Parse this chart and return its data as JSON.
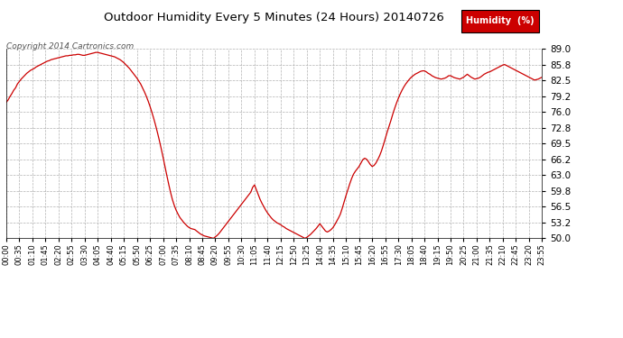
{
  "title": "Outdoor Humidity Every 5 Minutes (24 Hours) 20140726",
  "copyright_text": "Copyright 2014 Cartronics.com",
  "legend_label": "Humidity  (%)",
  "legend_bg": "#cc0000",
  "legend_text_color": "#ffffff",
  "line_color": "#cc0000",
  "bg_color": "#ffffff",
  "grid_color": "#aaaaaa",
  "title_color": "#000000",
  "copyright_color": "#555555",
  "ylim": [
    50.0,
    89.0
  ],
  "yticks": [
    50.0,
    53.2,
    56.5,
    59.8,
    63.0,
    66.2,
    69.5,
    72.8,
    76.0,
    79.2,
    82.5,
    85.8,
    89.0
  ],
  "humidity_values": [
    78.0,
    78.5,
    79.2,
    79.8,
    80.5,
    81.0,
    81.8,
    82.3,
    82.8,
    83.2,
    83.6,
    84.0,
    84.3,
    84.6,
    84.8,
    85.0,
    85.3,
    85.5,
    85.7,
    85.9,
    86.1,
    86.3,
    86.5,
    86.6,
    86.8,
    86.9,
    87.0,
    87.1,
    87.2,
    87.3,
    87.4,
    87.5,
    87.6,
    87.6,
    87.7,
    87.7,
    87.8,
    87.8,
    87.9,
    87.9,
    87.8,
    87.7,
    87.7,
    87.8,
    87.9,
    88.0,
    88.1,
    88.2,
    88.3,
    88.3,
    88.2,
    88.1,
    88.0,
    87.9,
    87.8,
    87.7,
    87.6,
    87.5,
    87.4,
    87.2,
    87.0,
    86.8,
    86.5,
    86.2,
    85.8,
    85.4,
    85.0,
    84.5,
    84.0,
    83.5,
    83.0,
    82.4,
    81.8,
    81.0,
    80.2,
    79.3,
    78.3,
    77.2,
    76.0,
    74.7,
    73.3,
    71.8,
    70.2,
    68.5,
    66.7,
    64.8,
    63.0,
    61.2,
    59.5,
    58.0,
    56.8,
    55.8,
    55.0,
    54.3,
    53.8,
    53.3,
    52.9,
    52.5,
    52.2,
    52.0,
    51.9,
    51.8,
    51.5,
    51.2,
    50.9,
    50.7,
    50.5,
    50.4,
    50.3,
    50.2,
    50.1,
    50.0,
    50.3,
    50.6,
    51.0,
    51.5,
    52.0,
    52.5,
    53.0,
    53.5,
    54.0,
    54.5,
    55.0,
    55.5,
    56.0,
    56.5,
    57.0,
    57.5,
    58.0,
    58.5,
    59.0,
    59.5,
    60.5,
    61.0,
    60.0,
    59.0,
    58.0,
    57.2,
    56.5,
    55.8,
    55.2,
    54.7,
    54.2,
    53.8,
    53.5,
    53.2,
    53.0,
    52.8,
    52.5,
    52.3,
    52.0,
    51.8,
    51.6,
    51.4,
    51.2,
    51.0,
    50.8,
    50.6,
    50.4,
    50.2,
    50.0,
    50.2,
    50.5,
    50.8,
    51.2,
    51.6,
    52.0,
    52.5,
    53.0,
    52.5,
    52.0,
    51.5,
    51.3,
    51.5,
    51.8,
    52.2,
    52.8,
    53.5,
    54.2,
    55.0,
    56.2,
    57.5,
    58.8,
    60.0,
    61.2,
    62.3,
    63.2,
    63.8,
    64.3,
    64.8,
    65.5,
    66.2,
    66.5,
    66.3,
    65.8,
    65.2,
    64.8,
    65.0,
    65.5,
    66.2,
    67.0,
    68.0,
    69.2,
    70.5,
    71.8,
    73.0,
    74.2,
    75.5,
    76.7,
    77.8,
    78.8,
    79.7,
    80.5,
    81.2,
    81.8,
    82.3,
    82.8,
    83.2,
    83.5,
    83.8,
    84.0,
    84.2,
    84.4,
    84.5,
    84.5,
    84.3,
    84.0,
    83.8,
    83.5,
    83.3,
    83.1,
    83.0,
    82.9,
    82.8,
    82.9,
    83.0,
    83.2,
    83.5,
    83.5,
    83.3,
    83.1,
    83.0,
    82.9,
    82.8,
    83.0,
    83.2,
    83.5,
    83.8,
    83.5,
    83.2,
    83.0,
    82.8,
    82.9,
    83.0,
    83.2,
    83.5,
    83.8,
    84.0,
    84.2,
    84.3,
    84.5,
    84.7,
    84.9,
    85.1,
    85.3,
    85.5,
    85.7,
    85.8,
    85.6,
    85.4,
    85.2,
    85.0,
    84.8,
    84.6,
    84.4,
    84.2,
    84.0,
    83.8,
    83.6,
    83.4,
    83.2,
    83.0,
    82.8,
    82.6,
    82.7,
    82.8,
    83.0,
    83.2
  ]
}
